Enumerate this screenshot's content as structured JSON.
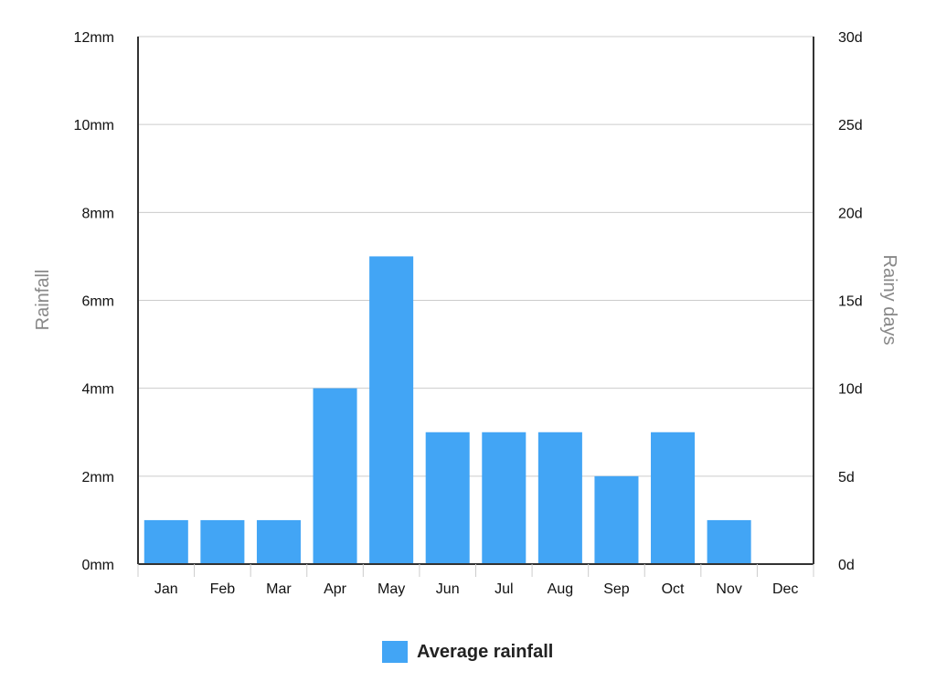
{
  "chart_data": {
    "type": "bar",
    "categories": [
      "Jan",
      "Feb",
      "Mar",
      "Apr",
      "May",
      "Jun",
      "Jul",
      "Aug",
      "Sep",
      "Oct",
      "Nov",
      "Dec"
    ],
    "series": [
      {
        "name": "Average rainfall",
        "values": [
          1,
          1,
          1,
          4,
          7,
          3,
          3,
          3,
          2,
          3,
          1,
          0
        ],
        "color": "#42a5f5"
      }
    ],
    "y_left": {
      "label": "Rainfall",
      "ticks": [
        "0mm",
        "2mm",
        "4mm",
        "6mm",
        "8mm",
        "10mm",
        "12mm"
      ],
      "ylim": [
        0,
        12
      ]
    },
    "y_right": {
      "label": "Rainy days",
      "ticks": [
        "0d",
        "5d",
        "10d",
        "15d",
        "20d",
        "25d",
        "30d"
      ],
      "ylim": [
        0,
        30
      ]
    },
    "grid": true,
    "legend_position": "bottom"
  }
}
